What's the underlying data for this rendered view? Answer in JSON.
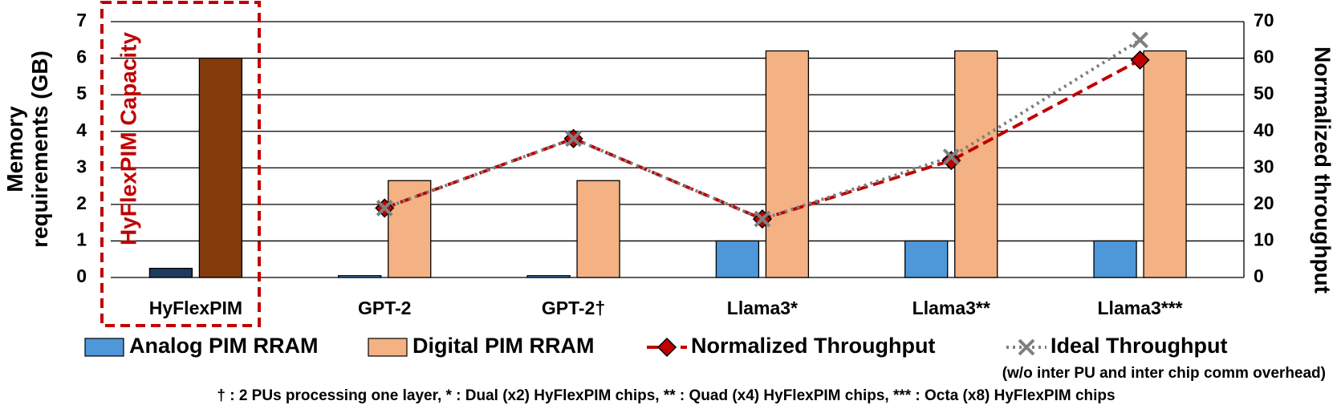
{
  "chart_data": {
    "type": "bar_line",
    "categories": [
      "HyFlexPIM",
      "GPT-2",
      "GPT-2†",
      "Llama3*",
      "Llama3**",
      "Llama3***"
    ],
    "series": [
      {
        "name": "Analog PIM RRAM",
        "color": "#4e97d9",
        "point_colors": [
          "#1f3a5f",
          "#4e97d9",
          "#4e97d9",
          "#4e97d9",
          "#4e97d9",
          "#4e97d9"
        ],
        "values": [
          0.25,
          0.05,
          0.05,
          1.0,
          1.0,
          1.0
        ]
      },
      {
        "name": "Digital PIM RRAM",
        "color": "#f4b183",
        "point_colors": [
          "#843c0c",
          "#f4b183",
          "#f4b183",
          "#f4b183",
          "#f4b183",
          "#f4b183"
        ],
        "values": [
          6.0,
          2.65,
          2.65,
          6.2,
          6.2,
          6.2
        ]
      },
      {
        "name": "Normalized Throughput",
        "color": "#c00000",
        "axis": "y2",
        "line_style": "dashed",
        "marker": "diamond",
        "values": [
          null,
          19,
          38,
          16,
          32,
          59.5
        ]
      },
      {
        "name": "Ideal Throughput",
        "color": "#7f7f7f",
        "axis": "y2",
        "line_style": "dotted",
        "marker": "x",
        "values": [
          null,
          19,
          38,
          16,
          33,
          65
        ]
      }
    ],
    "ylim": [
      0,
      7
    ],
    "yticks": [
      0,
      1,
      2,
      3,
      4,
      5,
      6,
      7
    ],
    "y2lim": [
      0,
      70
    ],
    "y2ticks": [
      0,
      10,
      20,
      30,
      40,
      50,
      60,
      70
    ],
    "ylabel_lines": [
      "Memory",
      "requirements (GB)"
    ],
    "y2label": "Normalized throughput",
    "grid": true,
    "annotation": "HyFlexPIM Capacity",
    "annotation_color": "#c00000",
    "legend_note": "(w/o inter PU and inter chip comm overhead)",
    "footnote": "† : 2 PUs processing one layer, * : Dual (x2) HyFlexPIM chips, ** : Quad (x4) HyFlexPIM chips, *** : Octa (x8) HyFlexPIM chips"
  }
}
